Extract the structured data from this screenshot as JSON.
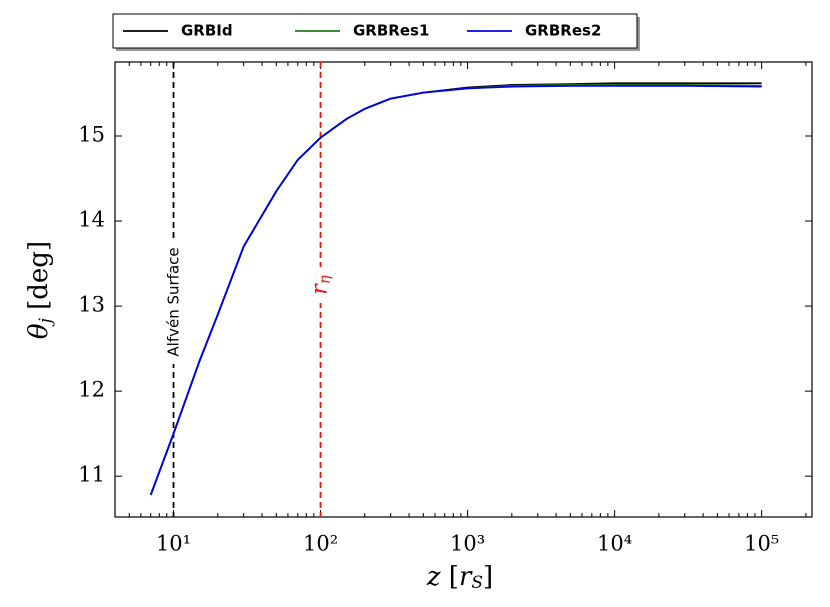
{
  "chart_data": {
    "type": "line",
    "xscale": "log",
    "x_label": {
      "text": "z",
      "open": " [",
      "var": "r",
      "sub": "S",
      "close": "]"
    },
    "y_label": {
      "text": "θ",
      "sub": "j",
      "rest": " [deg]"
    },
    "x": [
      7,
      10,
      15,
      20,
      30,
      50,
      70,
      100,
      150,
      200,
      300,
      500,
      1000,
      2000,
      5000,
      10000,
      30000,
      100000
    ],
    "series": [
      {
        "name": "GRBId",
        "color": "#000000",
        "values": [
          10.78,
          11.5,
          12.35,
          12.9,
          13.7,
          14.35,
          14.72,
          14.98,
          15.2,
          15.32,
          15.44,
          15.51,
          15.57,
          15.6,
          15.61,
          15.62,
          15.62,
          15.62
        ]
      },
      {
        "name": "GRBRes1",
        "color": "#1a801a",
        "values": [
          10.78,
          11.5,
          12.35,
          12.9,
          13.7,
          14.35,
          14.72,
          14.98,
          15.2,
          15.32,
          15.44,
          15.51,
          15.56,
          15.59,
          15.6,
          15.6,
          15.6,
          15.59
        ]
      },
      {
        "name": "GRBRes2",
        "color": "#0000ee",
        "values": [
          10.78,
          11.5,
          12.35,
          12.9,
          13.7,
          14.35,
          14.72,
          14.98,
          15.2,
          15.32,
          15.44,
          15.51,
          15.56,
          15.58,
          15.59,
          15.59,
          15.59,
          15.58
        ]
      }
    ],
    "xlim": [
      4,
      220000
    ],
    "ylim": [
      10.52,
      15.87
    ],
    "xticks": [
      {
        "value": 10,
        "label": "10¹"
      },
      {
        "value": 100,
        "label": "10²"
      },
      {
        "value": 1000,
        "label": "10³"
      },
      {
        "value": 10000,
        "label": "10⁴"
      },
      {
        "value": 100000,
        "label": "10⁵"
      }
    ],
    "yticks": [
      11,
      12,
      13,
      14,
      15
    ],
    "annotations": [
      {
        "text": "Alfvén Surface",
        "x": 10,
        "color": "#000000"
      },
      {
        "text": "r",
        "sub": "η",
        "x": 100,
        "color": "#ee1111"
      }
    ],
    "legend": "top"
  }
}
